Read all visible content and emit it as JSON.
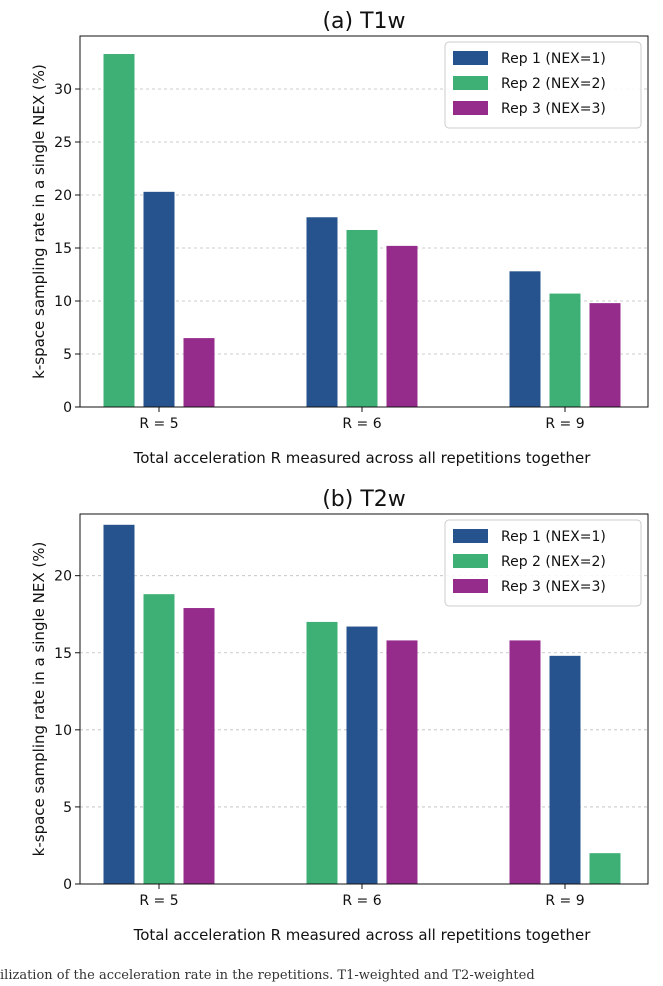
{
  "chart_data": [
    {
      "type": "bar",
      "title": "(a) T1w",
      "xlabel": "Total acceleration R measured across all repetitions together",
      "ylabel": "k-space sampling rate in a single NEX (%)",
      "ylim": [
        0,
        35
      ],
      "yticks": [
        0,
        5,
        10,
        15,
        20,
        25,
        30
      ],
      "grid": true,
      "legend": "top-right",
      "groups": [
        {
          "label": "R = 5",
          "bars": [
            {
              "series": "Rep 2 (NEX=2)",
              "value": 33.3
            },
            {
              "series": "Rep 1 (NEX=1)",
              "value": 20.3
            },
            {
              "series": "Rep 3 (NEX=3)",
              "value": 6.5
            }
          ]
        },
        {
          "label": "R = 6",
          "bars": [
            {
              "series": "Rep 1 (NEX=1)",
              "value": 17.9
            },
            {
              "series": "Rep 2 (NEX=2)",
              "value": 16.7
            },
            {
              "series": "Rep 3 (NEX=3)",
              "value": 15.2
            }
          ]
        },
        {
          "label": "R = 9",
          "bars": [
            {
              "series": "Rep 1 (NEX=1)",
              "value": 12.8
            },
            {
              "series": "Rep 2 (NEX=2)",
              "value": 10.7
            },
            {
              "series": "Rep 3 (NEX=3)",
              "value": 9.8
            }
          ]
        }
      ]
    },
    {
      "type": "bar",
      "title": "(b) T2w",
      "xlabel": "Total acceleration R measured across all repetitions together",
      "ylabel": "k-space sampling rate in a single NEX (%)",
      "ylim": [
        0,
        24
      ],
      "yticks": [
        0,
        5,
        10,
        15,
        20
      ],
      "grid": true,
      "legend": "top-right",
      "groups": [
        {
          "label": "R = 5",
          "bars": [
            {
              "series": "Rep 1 (NEX=1)",
              "value": 23.3
            },
            {
              "series": "Rep 2 (NEX=2)",
              "value": 18.8
            },
            {
              "series": "Rep 3 (NEX=3)",
              "value": 17.9
            }
          ]
        },
        {
          "label": "R = 6",
          "bars": [
            {
              "series": "Rep 2 (NEX=2)",
              "value": 17.0
            },
            {
              "series": "Rep 1 (NEX=1)",
              "value": 16.7
            },
            {
              "series": "Rep 3 (NEX=3)",
              "value": 15.8
            }
          ]
        },
        {
          "label": "R = 9",
          "bars": [
            {
              "series": "Rep 3 (NEX=3)",
              "value": 15.8
            },
            {
              "series": "Rep 1 (NEX=1)",
              "value": 14.8
            },
            {
              "series": "Rep 2 (NEX=2)",
              "value": 2.0
            }
          ]
        }
      ]
    }
  ],
  "legend_entries": [
    {
      "name": "Rep 1 (NEX=1)",
      "color": "#26538d"
    },
    {
      "name": "Rep 2 (NEX=2)",
      "color": "#3fb075"
    },
    {
      "name": "Rep 3 (NEX=3)",
      "color": "#952c8c"
    }
  ],
  "caption": "ilization of the acceleration rate in the repetitions. T1-weighted and T2-weighted"
}
